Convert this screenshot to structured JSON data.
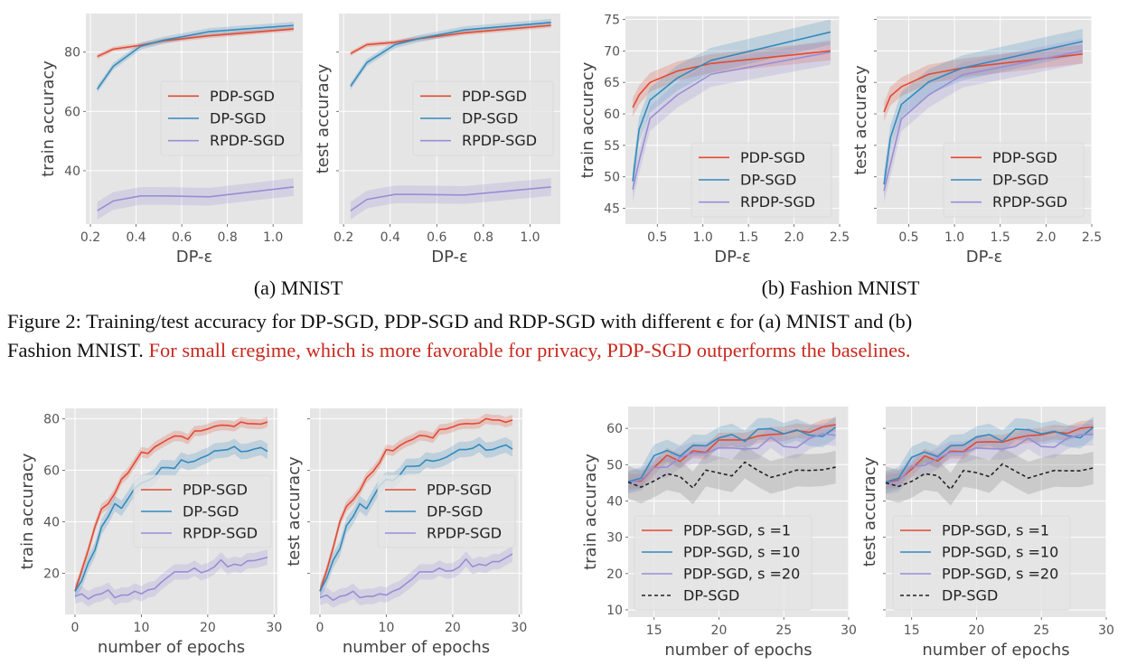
{
  "colors": {
    "pdp": "#e24a33",
    "dp": "#348abd",
    "rpdp": "#988ed5",
    "dp_dashed": "#222222",
    "band_dashed": "#999999",
    "plot_bg": "#e5e5e5",
    "grid": "#ffffff"
  },
  "figure2": {
    "subcaption_a": "(a) MNIST",
    "subcaption_b": "(b) Fashion MNIST",
    "caption_line1": "Figure 2: Training/test accuracy for DP-SGD, PDP-SGD and RDP-SGD with different ϵ for (a) MNIST and (b)",
    "caption_line2_black": "Fashion MNIST. ",
    "caption_line2_red": "For small ϵregime, which is more favorable for privacy, PDP-SGD outperforms the baselines."
  },
  "chart_data": [
    {
      "id": "mnist-train",
      "type": "line",
      "title": "",
      "xlabel": "DP-ε",
      "ylabel": "train accuracy",
      "xlim": [
        0.18,
        1.13
      ],
      "ylim": [
        22,
        93
      ],
      "xticks": [
        0.2,
        0.4,
        0.6,
        0.8,
        1.0
      ],
      "xtick_labels": [
        "0.2",
        "0.4",
        "0.6",
        "0.8",
        "1.0"
      ],
      "yticks": [
        40,
        60,
        80
      ],
      "ytick_labels": [
        "40",
        "60",
        "80"
      ],
      "grid": true,
      "legend_position": "center-right",
      "x": [
        0.23,
        0.3,
        0.42,
        0.52,
        0.72,
        1.09
      ],
      "series": [
        {
          "name": "PDP-SGD",
          "color_key": "pdp",
          "values": [
            78.5,
            81.0,
            82.3,
            83.8,
            85.5,
            87.8
          ],
          "band": 0.8
        },
        {
          "name": "DP-SGD",
          "color_key": "dp",
          "values": [
            67.5,
            75.2,
            82.0,
            84.0,
            86.9,
            89.0
          ],
          "band": 1.2
        },
        {
          "name": "RPDP-SGD",
          "color_key": "rpdp",
          "values": [
            26.5,
            29.8,
            31.5,
            31.5,
            31.2,
            34.5
          ],
          "band": 3.0
        }
      ]
    },
    {
      "id": "mnist-test",
      "type": "line",
      "xlabel": "DP-ε",
      "ylabel": "test accuracy",
      "xlim": [
        0.18,
        1.13
      ],
      "ylim": [
        22,
        93
      ],
      "xticks": [
        0.2,
        0.4,
        0.6,
        0.8,
        1.0
      ],
      "xtick_labels": [
        "0.2",
        "0.4",
        "0.6",
        "0.8",
        "1.0"
      ],
      "yticks": [
        40,
        60,
        80
      ],
      "ytick_labels": [
        "",
        "",
        ""
      ],
      "grid": true,
      "legend_position": "center-right",
      "x": [
        0.23,
        0.3,
        0.42,
        0.52,
        0.72,
        1.09
      ],
      "series": [
        {
          "name": "PDP-SGD",
          "color_key": "pdp",
          "values": [
            79.5,
            82.5,
            83.3,
            84.5,
            86.5,
            89.0
          ],
          "band": 0.8
        },
        {
          "name": "DP-SGD",
          "color_key": "dp",
          "values": [
            68.5,
            76.5,
            82.5,
            84.5,
            87.5,
            90.0
          ],
          "band": 1.2
        },
        {
          "name": "RPDP-SGD",
          "color_key": "rpdp",
          "values": [
            26.5,
            30.3,
            32.0,
            32.0,
            31.8,
            34.5
          ],
          "band": 3.0
        }
      ]
    },
    {
      "id": "fmnist-train",
      "type": "line",
      "xlabel": "DP-ε",
      "ylabel": "train accuracy",
      "xlim": [
        0.15,
        2.5
      ],
      "ylim": [
        42.5,
        75.5
      ],
      "xticks": [
        0.5,
        1.0,
        1.5,
        2.0,
        2.5
      ],
      "xtick_labels": [
        "0.5",
        "1.0",
        "1.5",
        "2.0",
        "2.5"
      ],
      "yticks": [
        45,
        50,
        55,
        60,
        65,
        70,
        75
      ],
      "ytick_labels": [
        "45",
        "50",
        "55",
        "60",
        "65",
        "70",
        "75"
      ],
      "grid": true,
      "legend_position": "lower-right",
      "x": [
        0.23,
        0.3,
        0.42,
        0.72,
        1.09,
        2.4
      ],
      "series": [
        {
          "name": "PDP-SGD",
          "color_key": "pdp",
          "values": [
            61.0,
            63.0,
            65.0,
            66.8,
            68.0,
            70.0
          ],
          "band": 1.5
        },
        {
          "name": "DP-SGD",
          "color_key": "dp",
          "values": [
            49.3,
            57.5,
            62.2,
            65.7,
            68.5,
            73.0
          ],
          "band": 2.0
        },
        {
          "name": "RPDP-SGD",
          "color_key": "rpdp",
          "values": [
            48.0,
            52.5,
            59.3,
            63.0,
            66.3,
            69.8
          ],
          "band": 2.0
        }
      ]
    },
    {
      "id": "fmnist-test",
      "type": "line",
      "xlabel": "DP-ε",
      "ylabel": "test accuracy",
      "xlim": [
        0.15,
        2.5
      ],
      "ylim": [
        42.5,
        75.5
      ],
      "xticks": [
        0.5,
        1.0,
        1.5,
        2.0,
        2.5
      ],
      "xtick_labels": [
        "0.5",
        "1.0",
        "1.5",
        "2.0",
        "2.5"
      ],
      "yticks": [
        45,
        50,
        55,
        60,
        65,
        70,
        75
      ],
      "ytick_labels": [
        "",
        "",
        "",
        "",
        "",
        "",
        ""
      ],
      "grid": true,
      "legend_position": "lower-right",
      "x": [
        0.23,
        0.3,
        0.42,
        0.72,
        1.09,
        2.4
      ],
      "series": [
        {
          "name": "PDP-SGD",
          "color_key": "pdp",
          "values": [
            60.3,
            62.8,
            64.3,
            66.3,
            67.3,
            69.5
          ],
          "band": 1.5
        },
        {
          "name": "DP-SGD",
          "color_key": "dp",
          "values": [
            48.8,
            56.2,
            61.5,
            65.1,
            67.3,
            71.5
          ],
          "band": 2.0
        },
        {
          "name": "RPDP-SGD",
          "color_key": "rpdp",
          "values": [
            47.8,
            52.0,
            59.2,
            63.0,
            66.2,
            70.0
          ],
          "band": 2.0
        }
      ]
    },
    {
      "id": "epochs-train",
      "type": "line",
      "xlabel": "number of epochs",
      "ylabel": "train accuracy",
      "xlim": [
        -1.5,
        30.5
      ],
      "ylim": [
        4,
        84
      ],
      "xticks": [
        0,
        10,
        20,
        30
      ],
      "xtick_labels": [
        "0",
        "10",
        "20",
        "30"
      ],
      "yticks": [
        20,
        40,
        60,
        80
      ],
      "ytick_labels": [
        "20",
        "40",
        "60",
        "80"
      ],
      "grid": true,
      "legend_position": "center-right",
      "x": [
        0,
        1,
        2,
        3,
        4,
        5,
        6,
        7,
        8,
        9,
        10,
        11,
        12,
        13,
        14,
        15,
        16,
        17,
        18,
        19,
        20,
        21,
        22,
        23,
        24,
        25,
        26,
        27,
        28,
        29
      ],
      "series": [
        {
          "name": "PDP-SGD",
          "color_key": "pdp",
          "values": [
            13,
            21,
            29,
            38,
            45,
            47,
            51,
            56.5,
            59,
            63,
            67,
            66.5,
            69,
            70.5,
            72,
            73.3,
            73.2,
            72,
            75.2,
            75.3,
            76,
            77,
            77.5,
            77.4,
            77,
            78.7,
            78.1,
            78,
            77.9,
            78.7
          ],
          "band": 2.0
        },
        {
          "name": "DP-SGD",
          "color_key": "dp",
          "values": [
            13,
            17,
            24,
            29,
            38,
            42,
            47,
            45.2,
            49,
            53,
            55,
            56,
            57.5,
            61,
            61,
            60.7,
            64,
            63,
            63.5,
            64.8,
            65.8,
            67.5,
            67.7,
            68,
            69.2,
            67.2,
            67.4,
            68.2,
            68.8,
            67.3
          ],
          "band": 3.0
        },
        {
          "name": "RPDP-SGD",
          "color_key": "rpdp",
          "values": [
            11,
            12,
            10,
            11.5,
            12,
            13.5,
            10.5,
            11.5,
            11.5,
            13,
            12,
            13.5,
            14,
            16.5,
            18.5,
            20.5,
            20.5,
            20.5,
            22,
            20.2,
            21,
            22.5,
            25.2,
            22.5,
            23.5,
            23,
            24.8,
            24.9,
            25.5,
            26.2
          ],
          "band": 3.0
        }
      ]
    },
    {
      "id": "epochs-test",
      "type": "line",
      "xlabel": "number of epochs",
      "ylabel": "test accuracy",
      "xlim": [
        -1.5,
        30.5
      ],
      "ylim": [
        4,
        84
      ],
      "xticks": [
        0,
        10,
        20,
        30
      ],
      "xtick_labels": [
        "0",
        "10",
        "20",
        "30"
      ],
      "yticks": [
        20,
        40,
        60,
        80
      ],
      "ytick_labels": [
        "",
        "",
        "",
        ""
      ],
      "grid": true,
      "legend_position": "center-right",
      "x": [
        0,
        1,
        2,
        3,
        4,
        5,
        6,
        7,
        8,
        9,
        10,
        11,
        12,
        13,
        14,
        15,
        16,
        17,
        18,
        19,
        20,
        21,
        22,
        23,
        24,
        25,
        26,
        27,
        28,
        29
      ],
      "series": [
        {
          "name": "PDP-SGD",
          "color_key": "pdp",
          "values": [
            13,
            21,
            30,
            40,
            46,
            48.5,
            52,
            57,
            59.5,
            63,
            68,
            67.5,
            69.5,
            71,
            72,
            73.5,
            73.3,
            72.5,
            75.8,
            76,
            76.8,
            77.8,
            78.1,
            78,
            78.3,
            80,
            79.5,
            79.5,
            78.6,
            79.5
          ],
          "band": 2.0
        },
        {
          "name": "DP-SGD",
          "color_key": "dp",
          "values": [
            13,
            18,
            25,
            29.5,
            38.5,
            42,
            47,
            45,
            49.5,
            54,
            56.5,
            56,
            58,
            61.5,
            61.5,
            61.7,
            64,
            63.5,
            64,
            65,
            66.5,
            68,
            68,
            68.5,
            70,
            67.8,
            68,
            69,
            69.8,
            68.2
          ],
          "band": 3.0
        },
        {
          "name": "RPDP-SGD",
          "color_key": "rpdp",
          "values": [
            10.5,
            11.5,
            9.5,
            11,
            11.5,
            13,
            10.5,
            11,
            11,
            12,
            11.5,
            13,
            14,
            16,
            18,
            20.5,
            20.5,
            20.5,
            22,
            20.8,
            21,
            22.5,
            25.5,
            22.5,
            23.5,
            23,
            24.5,
            24.5,
            26,
            27.5
          ],
          "band": 3.0
        }
      ]
    },
    {
      "id": "sparsity-train",
      "type": "line",
      "xlabel": "number of epochs",
      "ylabel": "train accuracy",
      "xlim": [
        13,
        30
      ],
      "ylim": [
        8,
        66
      ],
      "xticks": [
        15,
        20,
        25,
        30
      ],
      "xtick_labels": [
        "15",
        "20",
        "25",
        "30"
      ],
      "yticks": [
        10,
        20,
        30,
        40,
        50,
        60
      ],
      "ytick_labels": [
        "10",
        "20",
        "30",
        "40",
        "50",
        "60"
      ],
      "grid": true,
      "legend_position": "lower-left",
      "x": [
        13,
        14,
        15,
        16,
        17,
        18,
        19,
        20,
        21,
        22,
        23,
        24,
        25,
        26,
        27,
        28,
        29
      ],
      "series": [
        {
          "name": "PDP-SGD, s =1",
          "color_key": "pdp",
          "dashed": false,
          "values": [
            45.3,
            45.5,
            49.2,
            52.6,
            50.9,
            53.8,
            53.4,
            56.8,
            56.8,
            56.8,
            57.9,
            58.3,
            58.5,
            59.4,
            58.9,
            60.4,
            61.0
          ],
          "band": 2.0
        },
        {
          "name": "PDP-SGD, s =10",
          "color_key": "dp",
          "dashed": false,
          "values": [
            45.3,
            46.3,
            52.5,
            53.9,
            52.3,
            55.3,
            55.2,
            57.4,
            58.3,
            56.4,
            59.8,
            59.9,
            58.5,
            59.6,
            58.1,
            57.8,
            60.3
          ],
          "band": 3.0
        },
        {
          "name": "PDP-SGD, s =20",
          "color_key": "rpdp",
          "dashed": false,
          "values": [
            45.0,
            45.8,
            49.2,
            49.3,
            52.0,
            53.2,
            53.2,
            54.6,
            54.6,
            54.3,
            54.5,
            57.6,
            55.0,
            54.7,
            57.3,
            58.5,
            58.1
          ],
          "band": 3.0
        },
        {
          "name": "DP-SGD",
          "color_key": "dp_dashed",
          "dashed": true,
          "values": [
            45.2,
            43.8,
            45.5,
            47.5,
            46.7,
            43.6,
            48.5,
            47.7,
            46.9,
            50.7,
            48.4,
            46.5,
            47.4,
            48.5,
            48.4,
            48.6,
            49.3
          ],
          "band": 4.5
        }
      ]
    },
    {
      "id": "sparsity-test",
      "type": "line",
      "xlabel": "number of epochs",
      "ylabel": "test accuracy",
      "xlim": [
        13,
        30
      ],
      "ylim": [
        8,
        66
      ],
      "xticks": [
        15,
        20,
        25,
        30
      ],
      "xtick_labels": [
        "15",
        "20",
        "25",
        "30"
      ],
      "yticks": [
        10,
        20,
        30,
        40,
        50,
        60
      ],
      "ytick_labels": [
        "",
        "",
        "",
        "",
        "",
        ""
      ],
      "grid": true,
      "legend_position": "lower-left",
      "x": [
        13,
        14,
        15,
        16,
        17,
        18,
        19,
        20,
        21,
        22,
        23,
        24,
        25,
        26,
        27,
        28,
        29
      ],
      "series": [
        {
          "name": "PDP-SGD, s =1",
          "color_key": "pdp",
          "dashed": false,
          "values": [
            45.2,
            45.8,
            48.7,
            52.4,
            51.0,
            53.7,
            53.6,
            56.2,
            56.3,
            56.2,
            57.3,
            58.0,
            58.2,
            59.0,
            58.6,
            60.0,
            60.4
          ],
          "band": 2.0
        },
        {
          "name": "PDP-SGD, s =10",
          "color_key": "dp",
          "dashed": false,
          "values": [
            45.2,
            46.3,
            52.0,
            53.5,
            52.2,
            55.2,
            55.4,
            57.6,
            58.3,
            56.4,
            59.8,
            59.6,
            58.5,
            59.2,
            58.0,
            57.4,
            60.3
          ],
          "band": 3.0
        },
        {
          "name": "PDP-SGD, s =20",
          "color_key": "rpdp",
          "dashed": false,
          "values": [
            44.8,
            45.5,
            49.5,
            49.8,
            51.7,
            53.4,
            53.4,
            54.6,
            54.4,
            54.3,
            55.0,
            57.3,
            55.0,
            54.8,
            57.3,
            58.2,
            58.3
          ],
          "band": 3.0
        },
        {
          "name": "DP-SGD",
          "color_key": "dp_dashed",
          "dashed": true,
          "values": [
            45.0,
            44.0,
            45.4,
            47.5,
            47.0,
            43.2,
            48.4,
            47.8,
            46.7,
            50.2,
            48.2,
            46.3,
            47.4,
            48.4,
            48.3,
            48.3,
            49.1
          ],
          "band": 4.5
        }
      ]
    }
  ]
}
